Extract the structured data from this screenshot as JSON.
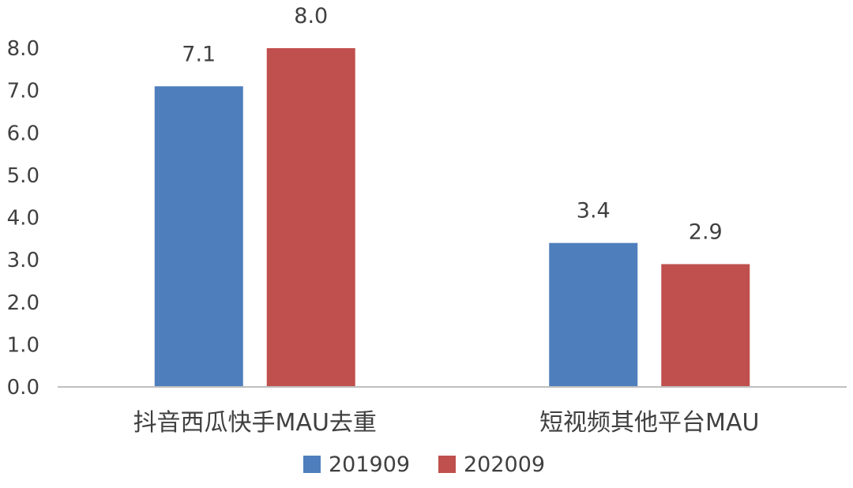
{
  "chart_data": {
    "type": "bar",
    "categories": [
      "抖音西瓜快手MAU去重",
      "短视频其他平台MAU"
    ],
    "series": [
      {
        "name": "201909",
        "values": [
          7.1,
          3.4
        ],
        "color": "#4e7fbc"
      },
      {
        "name": "202009",
        "values": [
          8.0,
          2.9
        ],
        "color": "#c0504d"
      }
    ],
    "ylim": [
      0,
      8
    ],
    "yticks": [
      0,
      1,
      2,
      3,
      4,
      5,
      6,
      7,
      8
    ],
    "tick_format_decimals": 1,
    "grid": false,
    "legend": "bottom",
    "axis_color": "#bfbfbf",
    "text_color": "#404040"
  }
}
